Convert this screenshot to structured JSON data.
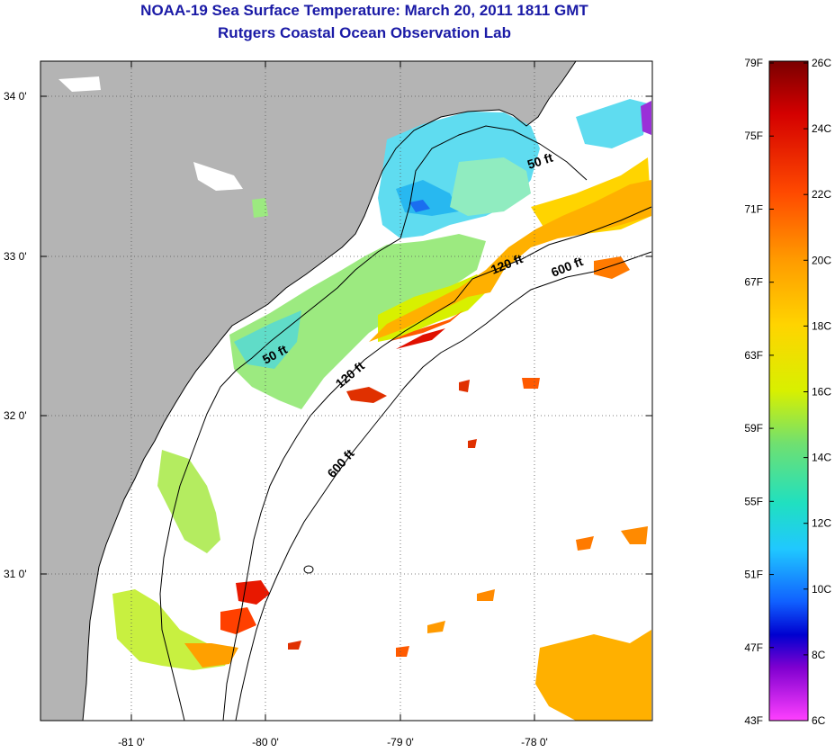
{
  "title": {
    "line1": "NOAA-19 Sea Surface Temperature:  March 20, 2011 1811 GMT",
    "line2": "Rutgers Coastal Ocean Observation Lab"
  },
  "map": {
    "lon_labels": [
      "-81 0'",
      "-80 0'",
      "-79 0'",
      "-78 0'"
    ],
    "lat_labels": [
      "34 0'",
      "33 0'",
      "32 0'",
      "31 0'"
    ],
    "contour_labels": [
      "50 ft",
      "120 ft",
      "600 ft",
      "50 ft",
      "120 ft",
      "600 ft"
    ],
    "land_color": "#b4b4b4",
    "coast_color": "#000000"
  },
  "colorbar": {
    "fahrenheit_labels": [
      "79F",
      "75F",
      "71F",
      "67F",
      "63F",
      "59F",
      "55F",
      "51F",
      "47F",
      "43F"
    ],
    "celsius_labels": [
      "26C",
      "24C",
      "22C",
      "20C",
      "18C",
      "16C",
      "14C",
      "12C",
      "10C",
      "8C",
      "6C"
    ],
    "colors": [
      "#7a0000",
      "#d40000",
      "#ff4a00",
      "#ff9a00",
      "#ffd400",
      "#d8f000",
      "#70e070",
      "#20e0c0",
      "#20c8ff",
      "#1060ff",
      "#0000d0",
      "#8000d0",
      "#ff40ff"
    ]
  }
}
